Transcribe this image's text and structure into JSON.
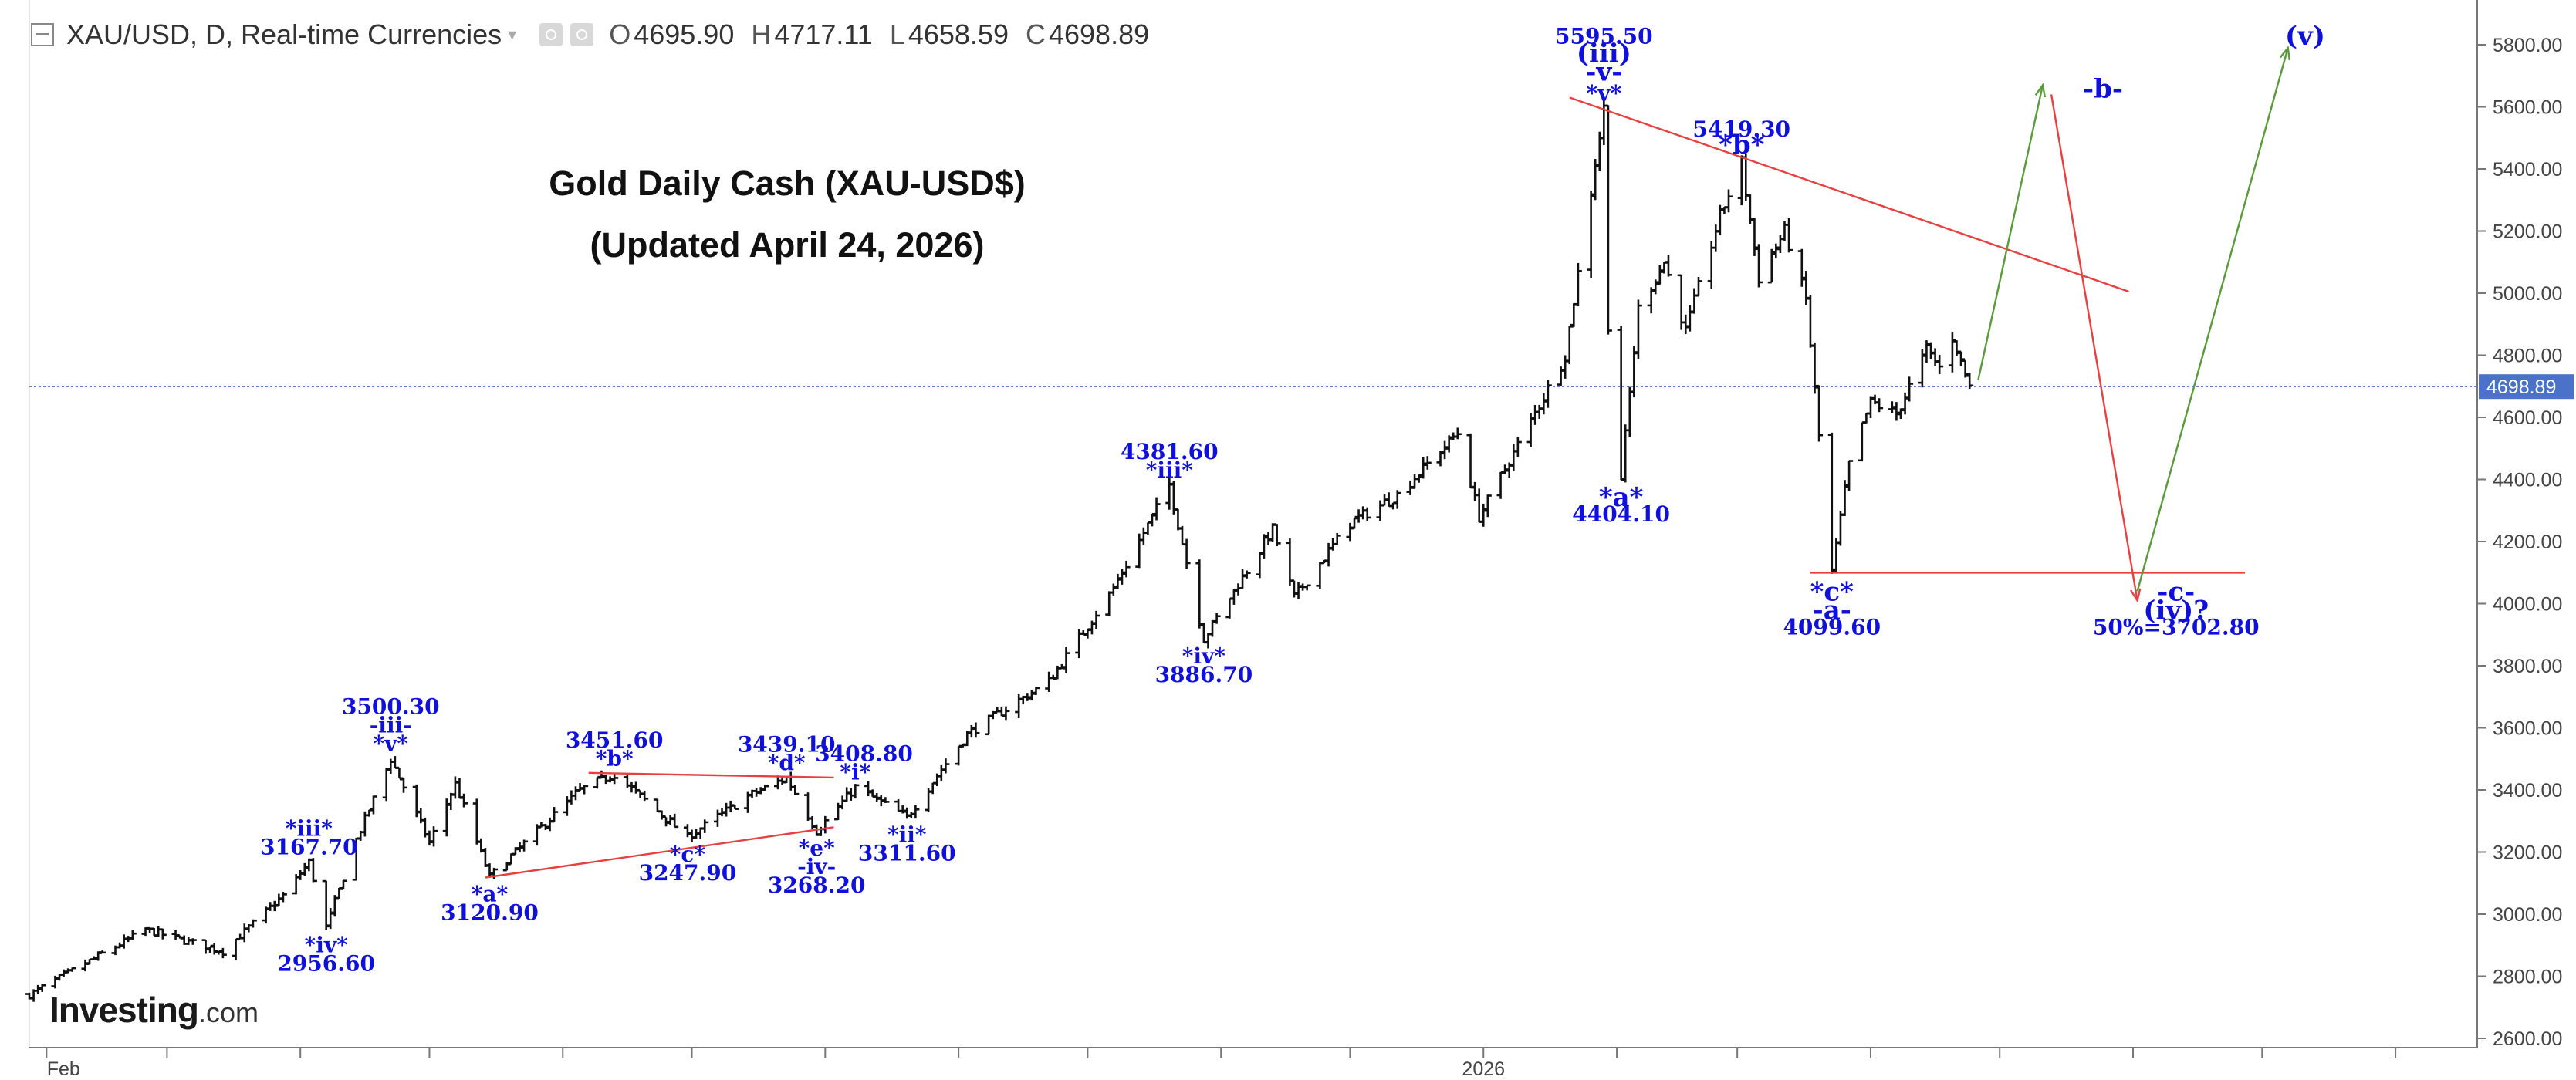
{
  "header": {
    "symbol_label": "XAU/USD, D, Real-time Currencies",
    "open_label": "O",
    "open": "4695.90",
    "high_label": "H",
    "high": "4717.11",
    "low_label": "L",
    "low": "4658.59",
    "close_label": "C",
    "close": "4698.89"
  },
  "titles": {
    "line1": "Gold Daily Cash (XAU-USD$)",
    "line2": "(Updated April 24, 2026)"
  },
  "logo": {
    "brand": "Investing",
    "suffix": ".com"
  },
  "colors": {
    "candles": "#111111",
    "wave_labels": "#1010dd",
    "trendlines": "#e84040",
    "projection_up": "#5a9a3a",
    "projection_down": "#e84040",
    "price_line": "#5b7fd1",
    "price_tag": "#4a72c8"
  },
  "chart_data": {
    "type": "candlestick",
    "symbol": "XAU/USD",
    "interval": "D",
    "ylim": [
      2600,
      5900
    ],
    "y_ticks": [
      "2600.00",
      "2800.00",
      "3000.00",
      "3200.00",
      "3400.00",
      "3600.00",
      "3800.00",
      "4000.00",
      "4200.00",
      "4400.00",
      "4600.00",
      "4800.00",
      "5000.00",
      "5200.00",
      "5400.00",
      "5600.00",
      "5800.00"
    ],
    "x_tick_labels": [
      {
        "date": "2025-02-01",
        "label": "Feb"
      },
      {
        "date": "2026-01-01",
        "label": "2026"
      }
    ],
    "x_range": [
      "2025-01-28",
      "2026-08-20"
    ],
    "last_price": "4698.89",
    "last_price_value": 4698.89,
    "pivots": [
      {
        "date": "2025-01-28",
        "value": 2740
      },
      {
        "date": "2025-02-24",
        "value": 2950
      },
      {
        "date": "2025-03-14",
        "value": 2880
      },
      {
        "date": "2025-03-28",
        "value": 3060
      },
      {
        "date": "2025-04-03",
        "value": 3167.7
      },
      {
        "date": "2025-04-07",
        "value": 2956.6
      },
      {
        "date": "2025-04-14",
        "value": 3240
      },
      {
        "date": "2025-04-22",
        "value": 3500.3
      },
      {
        "date": "2025-05-01",
        "value": 3230
      },
      {
        "date": "2025-05-07",
        "value": 3420
      },
      {
        "date": "2025-05-15",
        "value": 3120.9
      },
      {
        "date": "2025-06-05",
        "value": 3400
      },
      {
        "date": "2025-06-13",
        "value": 3451.6
      },
      {
        "date": "2025-06-30",
        "value": 3247.9
      },
      {
        "date": "2025-07-14",
        "value": 3380
      },
      {
        "date": "2025-07-23",
        "value": 3439.1
      },
      {
        "date": "2025-07-30",
        "value": 3268.2
      },
      {
        "date": "2025-08-08",
        "value": 3408.8
      },
      {
        "date": "2025-08-20",
        "value": 3311.6
      },
      {
        "date": "2025-09-03",
        "value": 3580
      },
      {
        "date": "2025-09-22",
        "value": 3750
      },
      {
        "date": "2025-10-07",
        "value": 4050
      },
      {
        "date": "2025-10-20",
        "value": 4381.6
      },
      {
        "date": "2025-10-28",
        "value": 3886.7
      },
      {
        "date": "2025-11-13",
        "value": 4240
      },
      {
        "date": "2025-11-18",
        "value": 4020
      },
      {
        "date": "2025-12-01",
        "value": 4260
      },
      {
        "date": "2025-12-12",
        "value": 4350
      },
      {
        "date": "2025-12-26",
        "value": 4550
      },
      {
        "date": "2025-12-31",
        "value": 4280
      },
      {
        "date": "2026-01-14",
        "value": 4640
      },
      {
        "date": "2026-01-20",
        "value": 4800
      },
      {
        "date": "2026-01-29",
        "value": 5595.5
      },
      {
        "date": "2026-01-30",
        "value": 4900
      },
      {
        "date": "2026-02-02",
        "value": 4404.1
      },
      {
        "date": "2026-02-06",
        "value": 4950
      },
      {
        "date": "2026-02-12",
        "value": 5100
      },
      {
        "date": "2026-02-17",
        "value": 4880
      },
      {
        "date": "2026-02-25",
        "value": 5250
      },
      {
        "date": "2026-03-02",
        "value": 5419.3
      },
      {
        "date": "2026-03-06",
        "value": 5050
      },
      {
        "date": "2026-03-12",
        "value": 5200
      },
      {
        "date": "2026-03-17",
        "value": 4980
      },
      {
        "date": "2026-03-23",
        "value": 4099.6
      },
      {
        "date": "2026-03-27",
        "value": 4450
      },
      {
        "date": "2026-04-01",
        "value": 4650
      },
      {
        "date": "2026-04-07",
        "value": 4610
      },
      {
        "date": "2026-04-14",
        "value": 4820
      },
      {
        "date": "2026-04-17",
        "value": 4760
      },
      {
        "date": "2026-04-20",
        "value": 4860
      },
      {
        "date": "2026-04-24",
        "value": 4698.89
      }
    ],
    "wave_labels": [
      {
        "text": "3167.70",
        "date": "2025-04-03",
        "value": 3167.7,
        "pos": "above"
      },
      {
        "text": "*iii*",
        "date": "2025-04-03",
        "value": 3167.7,
        "pos": "above2"
      },
      {
        "text": "*iv*",
        "date": "2025-04-07",
        "value": 2956.6,
        "pos": "below"
      },
      {
        "text": "2956.60",
        "date": "2025-04-07",
        "value": 2956.6,
        "pos": "below2"
      },
      {
        "text": "3500.30",
        "date": "2025-04-22",
        "value": 3500.3,
        "pos": "above3"
      },
      {
        "text": "-iii-",
        "date": "2025-04-22",
        "value": 3500.3,
        "pos": "above2"
      },
      {
        "text": "*v*",
        "date": "2025-04-22",
        "value": 3500.3,
        "pos": "above"
      },
      {
        "text": "*a*",
        "date": "2025-05-15",
        "value": 3120.9,
        "pos": "below"
      },
      {
        "text": "3120.90",
        "date": "2025-05-15",
        "value": 3120.9,
        "pos": "below2"
      },
      {
        "text": "3451.60",
        "date": "2025-06-13",
        "value": 3451.6,
        "pos": "above2"
      },
      {
        "text": "*b*",
        "date": "2025-06-13",
        "value": 3451.6,
        "pos": "above"
      },
      {
        "text": "*c*",
        "date": "2025-06-30",
        "value": 3247.9,
        "pos": "below"
      },
      {
        "text": "3247.90",
        "date": "2025-06-30",
        "value": 3247.9,
        "pos": "below2"
      },
      {
        "text": "3439.10",
        "date": "2025-07-23",
        "value": 3439.1,
        "pos": "above2"
      },
      {
        "text": "*d*",
        "date": "2025-07-23",
        "value": 3439.1,
        "pos": "above"
      },
      {
        "text": "*e*",
        "date": "2025-07-30",
        "value": 3268.2,
        "pos": "below"
      },
      {
        "text": "-iv-",
        "date": "2025-07-30",
        "value": 3268.2,
        "pos": "below2"
      },
      {
        "text": "3268.20",
        "date": "2025-07-30",
        "value": 3268.2,
        "pos": "below3"
      },
      {
        "text": "3408.80",
        "date": "2025-08-10",
        "value": 3408.8,
        "pos": "above2"
      },
      {
        "text": "*i*",
        "date": "2025-08-08",
        "value": 3408.8,
        "pos": "above"
      },
      {
        "text": "*ii*",
        "date": "2025-08-20",
        "value": 3311.6,
        "pos": "below"
      },
      {
        "text": "3311.60",
        "date": "2025-08-20",
        "value": 3311.6,
        "pos": "below2"
      },
      {
        "text": "4381.60",
        "date": "2025-10-20",
        "value": 4381.6,
        "pos": "above2"
      },
      {
        "text": "*iii*",
        "date": "2025-10-20",
        "value": 4381.6,
        "pos": "above"
      },
      {
        "text": "*iv*",
        "date": "2025-10-28",
        "value": 3886.7,
        "pos": "below"
      },
      {
        "text": "3886.70",
        "date": "2025-10-28",
        "value": 3886.7,
        "pos": "below2"
      },
      {
        "text": "5595.50",
        "date": "2026-01-29",
        "value": 5595.5,
        "pos": "above4"
      },
      {
        "text": "(iii)",
        "date": "2026-01-29",
        "value": 5595.5,
        "pos": "above3",
        "big": true
      },
      {
        "text": "-v-",
        "date": "2026-01-29",
        "value": 5595.5,
        "pos": "above2",
        "big": true
      },
      {
        "text": "*v*",
        "date": "2026-01-29",
        "value": 5595.5,
        "pos": "above"
      },
      {
        "text": "*a*",
        "date": "2026-02-02",
        "value": 4404.1,
        "pos": "below",
        "big": true
      },
      {
        "text": "4404.10",
        "date": "2026-02-02",
        "value": 4404.1,
        "pos": "below2"
      },
      {
        "text": "5419.30",
        "date": "2026-03-02",
        "value": 5419.3,
        "pos": "above2"
      },
      {
        "text": "*b*",
        "date": "2026-03-02",
        "value": 5419.3,
        "pos": "above",
        "big": true
      },
      {
        "text": "*c*",
        "date": "2026-03-23",
        "value": 4099.6,
        "pos": "below",
        "big": true
      },
      {
        "text": "-a-",
        "date": "2026-03-23",
        "value": 4099.6,
        "pos": "below2",
        "big": true
      },
      {
        "text": "4099.60",
        "date": "2026-03-23",
        "value": 4099.6,
        "pos": "below3"
      },
      {
        "text": "-b-",
        "date": "2026-05-25",
        "value": 5600,
        "pos": "above",
        "big": true
      },
      {
        "text": "(v)",
        "date": "2026-07-11",
        "value": 5770,
        "pos": "above",
        "big": true
      },
      {
        "text": "-c-",
        "date": "2026-06-11",
        "value": 4099.6,
        "pos": "below",
        "big": true
      },
      {
        "text": "(iv)?",
        "date": "2026-06-11",
        "value": 4099.6,
        "pos": "below2",
        "big": true
      },
      {
        "text": "50%=3702.80",
        "date": "2026-06-11",
        "value": 4099.6,
        "pos": "below3"
      }
    ],
    "trendlines": [
      {
        "from": {
          "date": "2025-05-14",
          "value": 3118
        },
        "to": {
          "date": "2025-08-03",
          "value": 3280
        }
      },
      {
        "from": {
          "date": "2025-06-07",
          "value": 3455
        },
        "to": {
          "date": "2025-08-03",
          "value": 3440
        }
      },
      {
        "from": {
          "date": "2026-01-21",
          "value": 5630
        },
        "to": {
          "date": "2026-05-31",
          "value": 5005
        }
      },
      {
        "from": {
          "date": "2026-03-18",
          "value": 4099.6
        },
        "to": {
          "date": "2026-06-27",
          "value": 4099.6
        }
      }
    ],
    "projections": [
      {
        "kind": "up",
        "from": {
          "date": "2026-04-26",
          "value": 4720
        },
        "to": {
          "date": "2026-05-11",
          "value": 5670
        }
      },
      {
        "kind": "down",
        "from": {
          "date": "2026-05-13",
          "value": 5640
        },
        "to": {
          "date": "2026-06-02",
          "value": 4010
        }
      },
      {
        "kind": "up",
        "from": {
          "date": "2026-06-02",
          "value": 4040
        },
        "to": {
          "date": "2026-07-07",
          "value": 5790
        }
      }
    ]
  }
}
